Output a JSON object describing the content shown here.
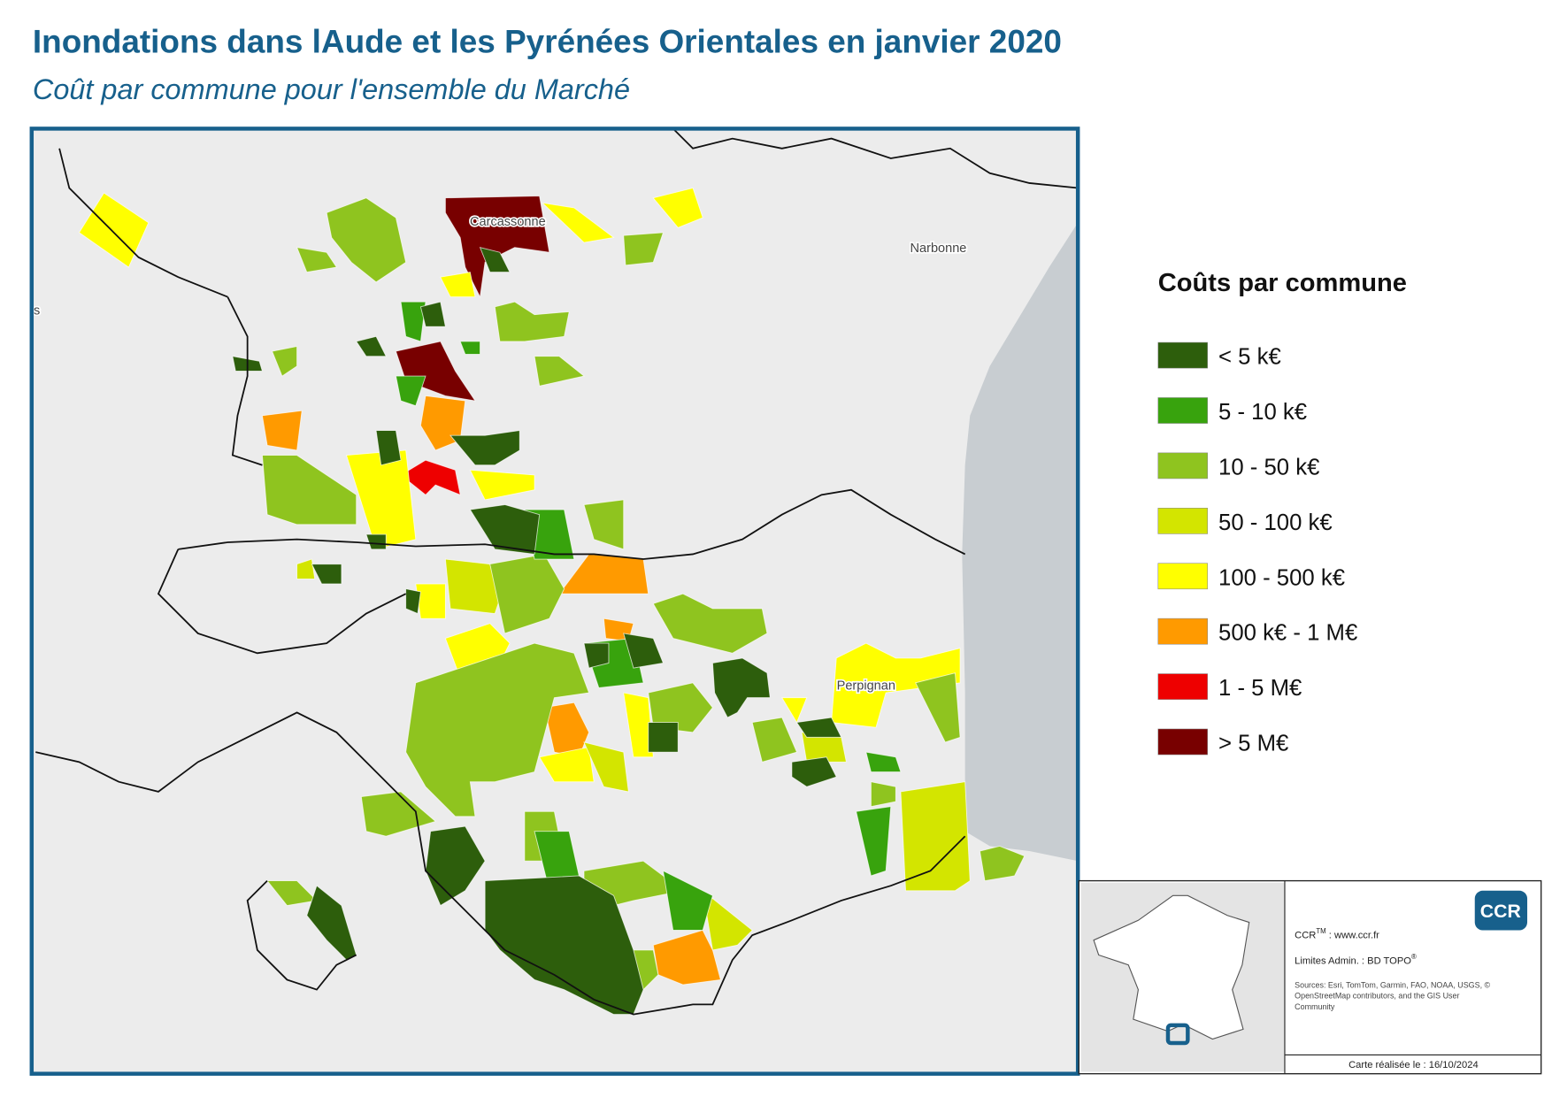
{
  "header": {
    "title": "Inondations dans lAude et les Pyrénées Orientales en janvier 2020",
    "subtitle": "Coût par commune pour l'ensemble du Marché"
  },
  "map": {
    "labels": [
      "Carcassonne",
      "Narbonne",
      "Perpignan",
      "s"
    ]
  },
  "legend": {
    "title": "Coûts par commune",
    "items": [
      {
        "label": "< 5 k€",
        "color": "#2d5e0c"
      },
      {
        "label": "5 - 10 k€",
        "color": "#38a30d"
      },
      {
        "label": "10 - 50 k€",
        "color": "#8fc41f"
      },
      {
        "label": "50 - 100 k€",
        "color": "#d3e500"
      },
      {
        "label": "100 - 500 k€",
        "color": "#ffff00"
      },
      {
        "label": "500 k€ - 1 M€",
        "color": "#ff9a00"
      },
      {
        "label": "1 - 5 M€",
        "color": "#ee0000"
      },
      {
        "label": "> 5 M€",
        "color": "#780000"
      }
    ]
  },
  "info": {
    "logo": "CCR",
    "site": [
      "CCR",
      "TM",
      " : www.ccr.fr"
    ],
    "limits": [
      "Limites Admin. : BD TOPO",
      "®"
    ],
    "sources": [
      "Sources: Esri, TomTom, Garmin, FAO, NOAA, USGS, ©",
      "OpenStreetMap contributors, and the GIS User",
      "Community"
    ],
    "date": "Carte réalisée le : 16/10/2024"
  }
}
